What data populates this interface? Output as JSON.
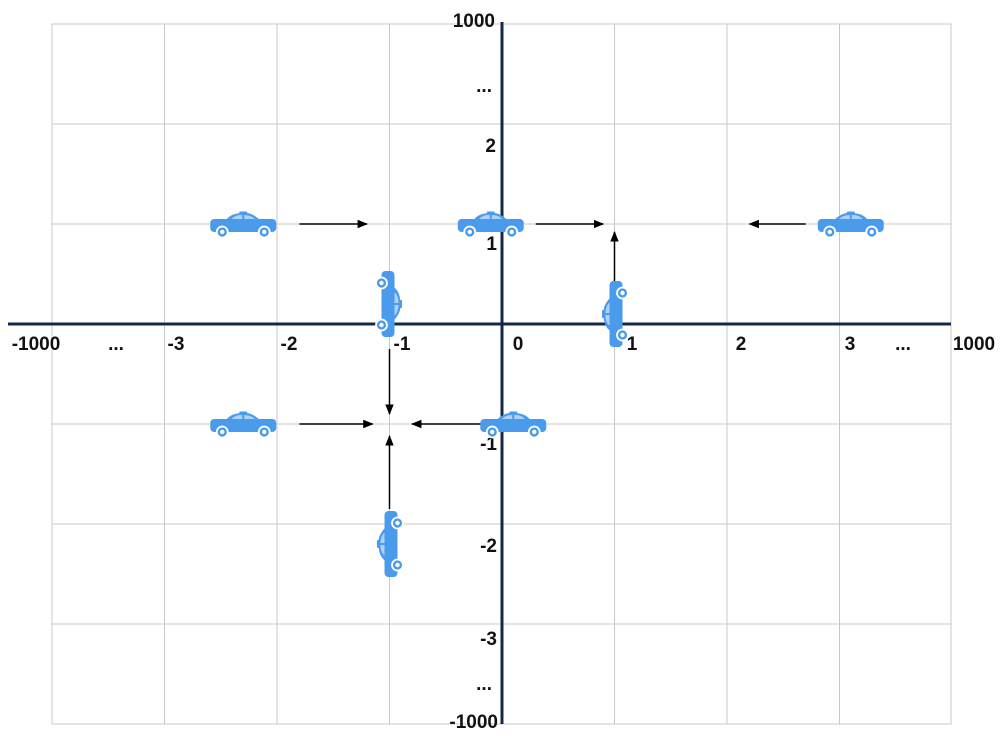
{
  "x_axis": {
    "labels": [
      "-1000",
      "...",
      "-3",
      "-2",
      "-1",
      "0",
      "1",
      "2",
      "3",
      "...",
      "1000"
    ]
  },
  "y_axis": {
    "labels": [
      "1000",
      "...",
      "2",
      "1",
      "-1",
      "-2",
      "-3",
      "...",
      "-1000"
    ]
  },
  "cars": [
    {
      "id": "car-a",
      "x": -2.3,
      "y": 1,
      "facing": "east",
      "icon": "taxi-car-icon"
    },
    {
      "id": "car-b",
      "x": -0.1,
      "y": 1,
      "facing": "east",
      "icon": "taxi-car-icon"
    },
    {
      "id": "car-c",
      "x": 3.1,
      "y": 1,
      "facing": "west",
      "icon": "taxi-car-icon"
    },
    {
      "id": "car-d",
      "x": -1.0,
      "y": 0.2,
      "facing": "south",
      "icon": "taxi-car-icon"
    },
    {
      "id": "car-e",
      "x": 1.0,
      "y": 0.1,
      "facing": "north",
      "icon": "taxi-car-icon"
    },
    {
      "id": "car-f",
      "x": -2.3,
      "y": -1,
      "facing": "east",
      "icon": "taxi-car-icon"
    },
    {
      "id": "car-g",
      "x": 0.1,
      "y": -1,
      "facing": "west",
      "icon": "taxi-car-icon"
    },
    {
      "id": "car-h",
      "x": -1.0,
      "y": -2.2,
      "facing": "north",
      "icon": "taxi-car-icon"
    }
  ],
  "arrows": [
    {
      "id": "arrow-a",
      "from": [
        -1.8,
        1
      ],
      "to": [
        -1.2,
        1
      ]
    },
    {
      "id": "arrow-b",
      "from": [
        0.3,
        1
      ],
      "to": [
        0.9,
        1
      ]
    },
    {
      "id": "arrow-c",
      "from": [
        2.7,
        1
      ],
      "to": [
        2.2,
        1
      ]
    },
    {
      "id": "arrow-d",
      "from": [
        -1.0,
        -0.25
      ],
      "to": [
        -1.0,
        -0.9
      ]
    },
    {
      "id": "arrow-e",
      "from": [
        1.0,
        0.35
      ],
      "to": [
        1.0,
        0.92
      ]
    },
    {
      "id": "arrow-f",
      "from": [
        -1.8,
        -1
      ],
      "to": [
        -1.15,
        -1
      ]
    },
    {
      "id": "arrow-g",
      "from": [
        -0.15,
        -1
      ],
      "to": [
        -0.8,
        -1
      ]
    },
    {
      "id": "arrow-h",
      "from": [
        -1.0,
        -1.85
      ],
      "to": [
        -1.0,
        -1.12
      ]
    }
  ],
  "colors": {
    "axis": "#14284b",
    "grid": "#c8c8c8",
    "car": "#4a9bec",
    "arrow": "#000000"
  }
}
